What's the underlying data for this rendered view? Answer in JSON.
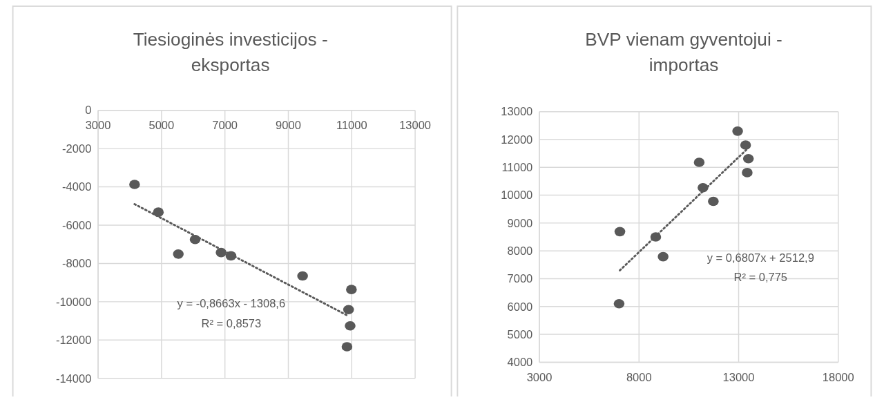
{
  "chart_data": [
    {
      "type": "scatter",
      "title": "Tiesioginės investicijos - eksportas",
      "grid": true,
      "xlim": [
        3000,
        13000
      ],
      "xticks": [
        3000,
        5000,
        7000,
        9000,
        11000,
        13000
      ],
      "ylim": [
        -14000,
        0
      ],
      "yticks": [
        -14000,
        -12000,
        -10000,
        -8000,
        -6000,
        -4000,
        -2000,
        0
      ],
      "series": [
        {
          "marker": "circle",
          "color": "#595959",
          "x": [
            4150,
            4900,
            5530,
            6060,
            6880,
            7190,
            9450,
            10990,
            10900,
            10950,
            10850
          ],
          "values": [
            -3870,
            -5320,
            -7510,
            -6750,
            -7430,
            -7600,
            -8650,
            -9360,
            -10410,
            -11260,
            -12350
          ]
        },
        {
          "type": "line",
          "line_style": "dotted",
          "marker": "none",
          "color": "#595959",
          "x": [
            4150,
            10900
          ],
          "values": [
            -4900,
            -10750
          ]
        }
      ],
      "annotations": [
        "y = -0,8663x - 1308,6",
        "R² = 0,8573"
      ]
    },
    {
      "type": "scatter",
      "title": "BVP vienam gyventojui - importas",
      "grid": true,
      "xlim": [
        3000,
        18000
      ],
      "xticks": [
        3000,
        8000,
        13000,
        18000
      ],
      "ylim": [
        4000,
        13000
      ],
      "yticks": [
        4000,
        5000,
        6000,
        7000,
        8000,
        9000,
        10000,
        11000,
        12000,
        13000
      ],
      "series": [
        {
          "marker": "circle",
          "color": "#595959",
          "x": [
            7040,
            7000,
            8840,
            9210,
            11020,
            11210,
            11730,
            12950,
            13350,
            13490,
            13430
          ],
          "values": [
            8690,
            6100,
            8500,
            7790,
            11180,
            10270,
            9780,
            12300,
            11800,
            11310,
            10810
          ]
        },
        {
          "type": "line",
          "line_style": "dotted",
          "marker": "none",
          "color": "#595959",
          "x": [
            7040,
            13490
          ],
          "values": [
            7300,
            11700
          ]
        }
      ],
      "annotations": [
        "y = 0,6807x + 2512,9",
        "R² = 0,775"
      ]
    }
  ]
}
